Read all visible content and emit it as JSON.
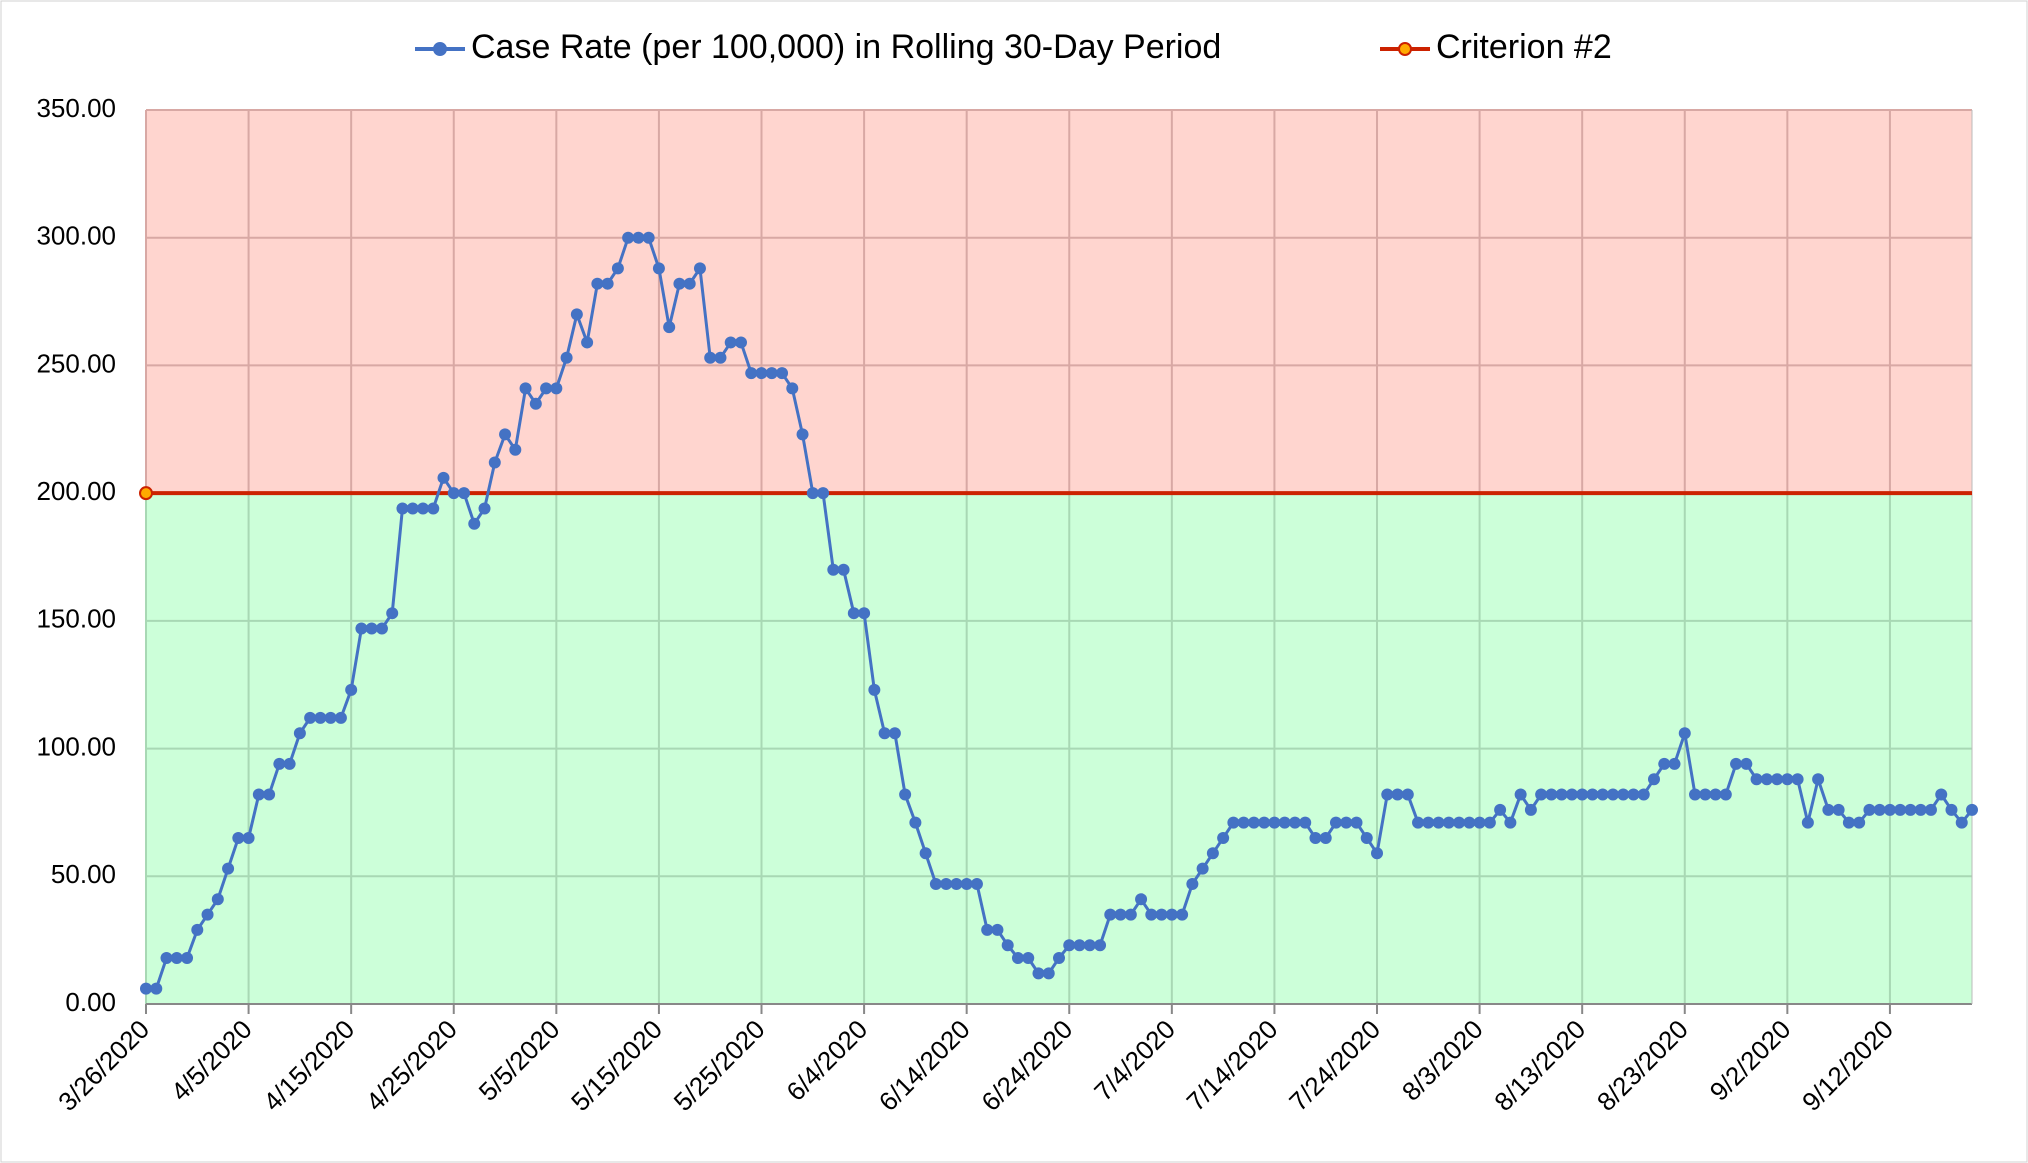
{
  "chart_data": {
    "type": "line",
    "categories": [
      "3/26/2020",
      null,
      null,
      null,
      null,
      null,
      null,
      null,
      null,
      null,
      "4/5/2020",
      null,
      null,
      null,
      null,
      null,
      null,
      null,
      null,
      null,
      "4/15/2020",
      null,
      null,
      null,
      null,
      null,
      null,
      null,
      null,
      null,
      "4/25/2020",
      null,
      null,
      null,
      null,
      null,
      null,
      null,
      null,
      null,
      "5/5/2020",
      null,
      null,
      null,
      null,
      null,
      null,
      null,
      null,
      null,
      "5/15/2020",
      null,
      null,
      null,
      null,
      null,
      null,
      null,
      null,
      null,
      "5/25/2020",
      null,
      null,
      null,
      null,
      null,
      null,
      null,
      null,
      null,
      "6/4/2020",
      null,
      null,
      null,
      null,
      null,
      null,
      null,
      null,
      null,
      "6/14/2020",
      null,
      null,
      null,
      null,
      null,
      null,
      null,
      null,
      null,
      "6/24/2020",
      null,
      null,
      null,
      null,
      null,
      null,
      null,
      null,
      null,
      "7/4/2020",
      null,
      null,
      null,
      null,
      null,
      null,
      null,
      null,
      null,
      "7/14/2020",
      null,
      null,
      null,
      null,
      null,
      null,
      null,
      null,
      null,
      "7/24/2020",
      null,
      null,
      null,
      null,
      null,
      null,
      null,
      null,
      null,
      "8/3/2020",
      null,
      null,
      null,
      null,
      null,
      null,
      null,
      null,
      null,
      "8/13/2020",
      null,
      null,
      null,
      null,
      null,
      null,
      null,
      null,
      null,
      "8/23/2020",
      null,
      null,
      null,
      null,
      null,
      null,
      null,
      null,
      null,
      "9/2/2020",
      null,
      null,
      null,
      null,
      null,
      null,
      null,
      null,
      null,
      "9/12/2020",
      null,
      null,
      null,
      null,
      null,
      null,
      null,
      null
    ],
    "series": [
      {
        "name": "Case Rate (per 100,000) in Rolling 30-Day Period",
        "color": "#4472c4",
        "values": [
          6,
          6,
          18,
          18,
          18,
          29,
          35,
          41,
          53,
          65,
          65,
          82,
          82,
          94,
          94,
          106,
          112,
          112,
          112,
          112,
          123,
          147,
          147,
          147,
          153,
          194,
          194,
          194,
          194,
          206,
          200,
          200,
          188,
          194,
          212,
          223,
          217,
          241,
          235,
          241,
          241,
          253,
          270,
          259,
          282,
          282,
          288,
          300,
          300,
          300,
          288,
          265,
          282,
          282,
          288,
          253,
          253,
          259,
          259,
          247,
          247,
          247,
          247,
          241,
          223,
          200,
          200,
          170,
          170,
          153,
          153,
          123,
          106,
          106,
          82,
          71,
          59,
          47,
          47,
          47,
          47,
          47,
          29,
          29,
          23,
          18,
          18,
          12,
          12,
          18,
          23,
          23,
          23,
          23,
          35,
          35,
          35,
          41,
          35,
          35,
          35,
          35,
          47,
          53,
          59,
          65,
          71,
          71,
          71,
          71,
          71,
          71,
          71,
          71,
          65,
          65,
          71,
          71,
          71,
          65,
          59,
          82,
          82,
          82,
          71,
          71,
          71,
          71,
          71,
          71,
          71,
          71,
          76,
          71,
          82,
          76,
          82,
          82,
          82,
          82,
          82,
          82,
          82,
          82,
          82,
          82,
          82,
          88,
          94,
          94,
          106,
          82,
          82,
          82,
          82,
          94,
          94,
          88,
          88,
          88,
          88,
          88,
          71,
          88,
          76,
          76,
          71,
          71,
          76,
          76,
          76,
          76,
          76,
          76,
          76,
          82,
          76,
          71,
          76
        ]
      },
      {
        "name": "Criterion #2",
        "color": "#cc2200",
        "values": [
          200,
          200,
          200,
          200,
          200,
          200,
          200,
          200,
          200,
          200,
          200,
          200,
          200,
          200,
          200,
          200,
          200,
          200,
          200,
          200,
          200,
          200,
          200,
          200,
          200,
          200,
          200,
          200,
          200,
          200,
          200,
          200,
          200,
          200,
          200,
          200,
          200,
          200,
          200,
          200,
          200,
          200,
          200,
          200,
          200,
          200,
          200,
          200,
          200,
          200,
          200,
          200,
          200,
          200,
          200,
          200,
          200,
          200,
          200,
          200,
          200,
          200,
          200,
          200,
          200,
          200,
          200,
          200,
          200,
          200,
          200,
          200,
          200,
          200,
          200,
          200,
          200,
          200,
          200,
          200,
          200,
          200,
          200,
          200,
          200,
          200,
          200,
          200,
          200,
          200,
          200,
          200,
          200,
          200,
          200,
          200,
          200,
          200,
          200,
          200,
          200,
          200,
          200,
          200,
          200,
          200,
          200,
          200,
          200,
          200,
          200,
          200,
          200,
          200,
          200,
          200,
          200,
          200,
          200,
          200,
          200,
          200,
          200,
          200,
          200,
          200,
          200,
          200,
          200,
          200,
          200,
          200,
          200,
          200,
          200,
          200,
          200,
          200,
          200,
          200,
          200,
          200,
          200,
          200,
          200,
          200,
          200,
          200,
          200,
          200,
          200,
          200,
          200,
          200,
          200,
          200,
          200,
          200,
          200,
          200,
          200,
          200,
          200,
          200,
          200,
          200,
          200,
          200,
          200,
          200,
          200,
          200,
          200,
          200,
          200,
          200,
          200,
          200,
          200
        ]
      }
    ],
    "ylim": [
      0,
      350
    ],
    "yticks": [
      {
        "value": 0,
        "label": "0.00"
      },
      {
        "value": 50,
        "label": "50.00"
      },
      {
        "value": 100,
        "label": "100.00"
      },
      {
        "value": 150,
        "label": "150.00"
      },
      {
        "value": 200,
        "label": "200.00"
      },
      {
        "value": 250,
        "label": "250.00"
      },
      {
        "value": 300,
        "label": "300.00"
      },
      {
        "value": 350,
        "label": "350.00"
      }
    ],
    "grid": true,
    "legend": "top"
  }
}
